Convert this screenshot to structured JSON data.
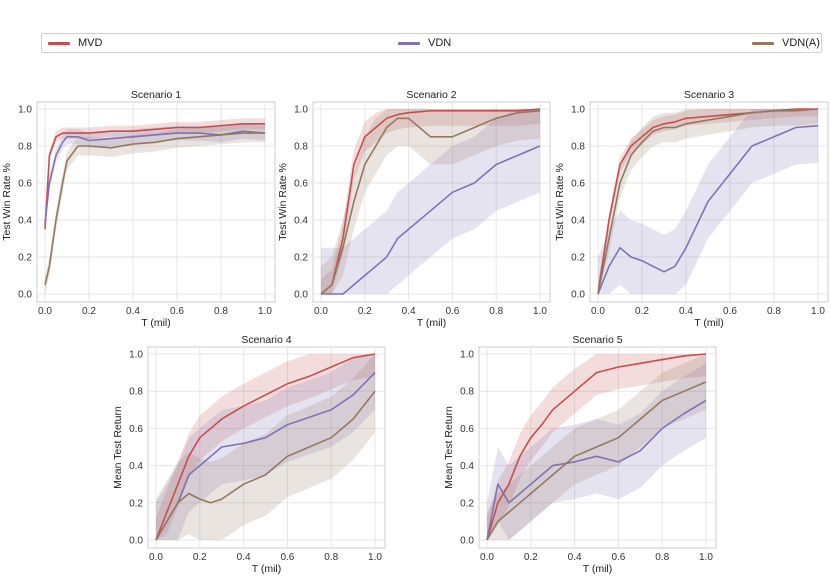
{
  "legend": {
    "items": [
      {
        "label": "MVD",
        "color": "#c44e52"
      },
      {
        "label": "VDN",
        "color": "#8172b2"
      },
      {
        "label": "VDN(A)",
        "color": "#937860"
      }
    ]
  },
  "chart_data": [
    {
      "type": "line",
      "title": "Scenario 1",
      "xlabel": "T (mil)",
      "ylabel": "Test Win Rate %",
      "xlim": [
        0,
        1.0
      ],
      "ylim": [
        0,
        1.0
      ],
      "xticks": [
        "0.0",
        "0.2",
        "0.4",
        "0.6",
        "0.8",
        "1.0"
      ],
      "yticks": [
        "0.0",
        "0.2",
        "0.4",
        "0.6",
        "0.8",
        "1.0"
      ],
      "x": [
        0,
        0.02,
        0.05,
        0.08,
        0.1,
        0.15,
        0.2,
        0.3,
        0.4,
        0.5,
        0.6,
        0.7,
        0.8,
        0.9,
        1.0
      ],
      "series": [
        {
          "name": "MVD",
          "color": "#c44e52",
          "values": [
            0.35,
            0.75,
            0.85,
            0.87,
            0.87,
            0.87,
            0.87,
            0.88,
            0.88,
            0.89,
            0.9,
            0.9,
            0.91,
            0.92,
            0.92
          ],
          "band": 0.03
        },
        {
          "name": "VDN",
          "color": "#8172b2",
          "values": [
            0.38,
            0.6,
            0.75,
            0.82,
            0.85,
            0.85,
            0.83,
            0.84,
            0.85,
            0.86,
            0.87,
            0.87,
            0.86,
            0.88,
            0.87
          ],
          "band": 0.04
        },
        {
          "name": "VDN(A)",
          "color": "#937860",
          "values": [
            0.05,
            0.15,
            0.4,
            0.6,
            0.72,
            0.8,
            0.8,
            0.79,
            0.81,
            0.82,
            0.84,
            0.85,
            0.86,
            0.87,
            0.87
          ],
          "band": 0.05
        }
      ]
    },
    {
      "type": "line",
      "title": "Scenario 2",
      "xlabel": "T (mil)",
      "ylabel": "Test Win Rate %",
      "xlim": [
        0,
        1.0
      ],
      "ylim": [
        0,
        1.0
      ],
      "xticks": [
        "0.0",
        "0.2",
        "0.4",
        "0.6",
        "0.8",
        "1.0"
      ],
      "yticks": [
        "0.0",
        "0.2",
        "0.4",
        "0.6",
        "0.8",
        "1.0"
      ],
      "x": [
        0,
        0.05,
        0.1,
        0.15,
        0.2,
        0.25,
        0.3,
        0.35,
        0.4,
        0.5,
        0.6,
        0.7,
        0.8,
        0.9,
        1.0
      ],
      "series": [
        {
          "name": "MVD",
          "color": "#c44e52",
          "values": [
            0.0,
            0.05,
            0.3,
            0.7,
            0.85,
            0.9,
            0.95,
            0.97,
            0.98,
            0.99,
            0.99,
            0.99,
            0.99,
            0.99,
            1.0
          ],
          "band": 0.08
        },
        {
          "name": "VDN",
          "color": "#8172b2",
          "values": [
            0.0,
            0.0,
            0.0,
            0.05,
            0.1,
            0.15,
            0.2,
            0.3,
            0.35,
            0.45,
            0.55,
            0.6,
            0.7,
            0.75,
            0.8
          ],
          "band": 0.25
        },
        {
          "name": "VDN(A)",
          "color": "#937860",
          "values": [
            0.0,
            0.05,
            0.25,
            0.5,
            0.7,
            0.8,
            0.9,
            0.95,
            0.95,
            0.85,
            0.85,
            0.9,
            0.95,
            0.98,
            0.99
          ],
          "band": 0.15
        }
      ]
    },
    {
      "type": "line",
      "title": "Scenario 3",
      "xlabel": "T (mil)",
      "ylabel": "Test Win Rate %",
      "xlim": [
        0,
        1.0
      ],
      "ylim": [
        0,
        1.0
      ],
      "xticks": [
        "0.0",
        "0.2",
        "0.4",
        "0.6",
        "0.8",
        "1.0"
      ],
      "yticks": [
        "0.0",
        "0.2",
        "0.4",
        "0.6",
        "0.8",
        "1.0"
      ],
      "x": [
        0,
        0.05,
        0.1,
        0.15,
        0.2,
        0.25,
        0.3,
        0.35,
        0.4,
        0.5,
        0.6,
        0.7,
        0.8,
        0.9,
        1.0
      ],
      "series": [
        {
          "name": "MVD",
          "color": "#c44e52",
          "values": [
            0.0,
            0.4,
            0.7,
            0.8,
            0.85,
            0.9,
            0.92,
            0.93,
            0.95,
            0.96,
            0.97,
            0.98,
            0.99,
            1.0,
            1.0
          ],
          "band": 0.04
        },
        {
          "name": "VDN",
          "color": "#8172b2",
          "values": [
            0.0,
            0.15,
            0.25,
            0.2,
            0.18,
            0.15,
            0.12,
            0.15,
            0.25,
            0.5,
            0.65,
            0.8,
            0.85,
            0.9,
            0.91
          ],
          "band": 0.2
        },
        {
          "name": "VDN(A)",
          "color": "#937860",
          "values": [
            0.0,
            0.3,
            0.6,
            0.75,
            0.82,
            0.88,
            0.9,
            0.9,
            0.92,
            0.94,
            0.96,
            0.98,
            0.99,
            0.99,
            1.0
          ],
          "band": 0.08
        }
      ]
    },
    {
      "type": "line",
      "title": "Scenario 4",
      "xlabel": "T (mil)",
      "ylabel": "Mean Test Return",
      "xlim": [
        0,
        1.0
      ],
      "ylim": [
        0,
        1.0
      ],
      "xticks": [
        "0.0",
        "0.2",
        "0.4",
        "0.6",
        "0.8",
        "1.0"
      ],
      "yticks": [
        "0.0",
        "0.2",
        "0.4",
        "0.6",
        "0.8",
        "1.0"
      ],
      "x": [
        0,
        0.05,
        0.1,
        0.15,
        0.2,
        0.25,
        0.3,
        0.4,
        0.5,
        0.6,
        0.7,
        0.8,
        0.9,
        1.0
      ],
      "series": [
        {
          "name": "MVD",
          "color": "#c44e52",
          "values": [
            0.0,
            0.15,
            0.3,
            0.45,
            0.55,
            0.6,
            0.65,
            0.72,
            0.78,
            0.84,
            0.88,
            0.93,
            0.98,
            1.0
          ],
          "band": 0.12
        },
        {
          "name": "VDN",
          "color": "#8172b2",
          "values": [
            0.0,
            0.1,
            0.2,
            0.35,
            0.4,
            0.45,
            0.5,
            0.52,
            0.55,
            0.62,
            0.66,
            0.7,
            0.78,
            0.9
          ],
          "band": 0.2
        },
        {
          "name": "VDN(A)",
          "color": "#937860",
          "values": [
            0.0,
            0.1,
            0.2,
            0.25,
            0.22,
            0.2,
            0.22,
            0.3,
            0.35,
            0.45,
            0.5,
            0.55,
            0.65,
            0.8
          ],
          "band": 0.22
        }
      ]
    },
    {
      "type": "line",
      "title": "Scenario 5",
      "xlabel": "T (mil)",
      "ylabel": "Mean Test Return",
      "xlim": [
        0,
        1.0
      ],
      "ylim": [
        0,
        1.0
      ],
      "xticks": [
        "0.0",
        "0.2",
        "0.4",
        "0.6",
        "0.8",
        "1.0"
      ],
      "yticks": [
        "0.0",
        "0.2",
        "0.4",
        "0.6",
        "0.8",
        "1.0"
      ],
      "x": [
        0,
        0.05,
        0.1,
        0.15,
        0.2,
        0.25,
        0.3,
        0.4,
        0.5,
        0.6,
        0.7,
        0.8,
        0.9,
        1.0
      ],
      "series": [
        {
          "name": "MVD",
          "color": "#c44e52",
          "values": [
            0.0,
            0.2,
            0.3,
            0.45,
            0.55,
            0.62,
            0.7,
            0.8,
            0.9,
            0.93,
            0.95,
            0.97,
            0.99,
            1.0
          ],
          "band": 0.12
        },
        {
          "name": "VDN",
          "color": "#8172b2",
          "values": [
            0.0,
            0.3,
            0.2,
            0.25,
            0.3,
            0.35,
            0.4,
            0.42,
            0.45,
            0.42,
            0.48,
            0.6,
            0.68,
            0.75
          ],
          "band": 0.2
        },
        {
          "name": "VDN(A)",
          "color": "#937860",
          "values": [
            0.0,
            0.1,
            0.15,
            0.2,
            0.25,
            0.3,
            0.35,
            0.45,
            0.5,
            0.55,
            0.65,
            0.75,
            0.8,
            0.85
          ],
          "band": 0.15
        }
      ]
    }
  ]
}
